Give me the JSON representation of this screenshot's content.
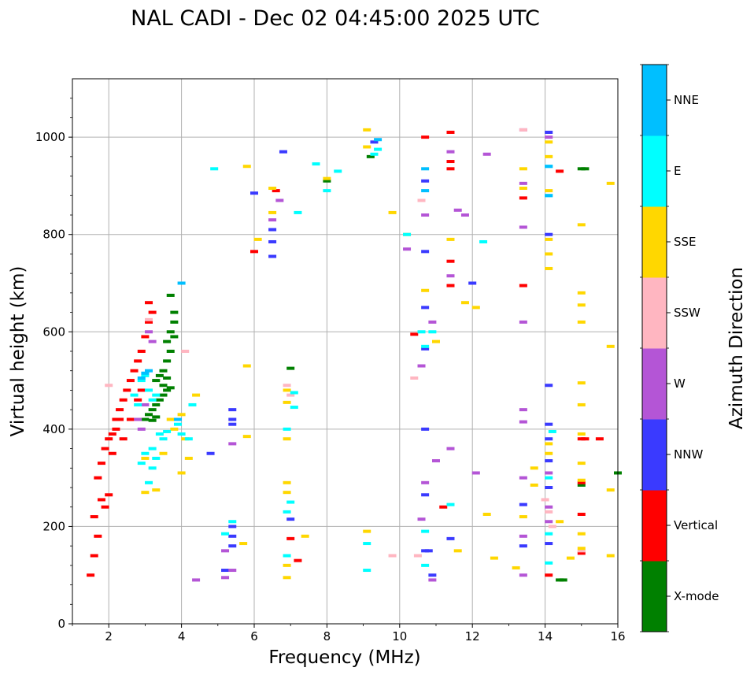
{
  "chart_data": {
    "type": "scatter",
    "title": "NAL CADI - Dec 02 04:45:00 2025 UTC",
    "xlabel": "Frequency (MHz)",
    "ylabel": "Virtual height (km)",
    "xlim": [
      1,
      16
    ],
    "ylim": [
      0,
      1120
    ],
    "xticks": [
      2,
      4,
      6,
      8,
      10,
      12,
      14,
      16
    ],
    "yticks": [
      0,
      200,
      400,
      600,
      800,
      1000
    ],
    "grid": true,
    "colorbar": {
      "label": "Azimuth Direction",
      "categories": [
        "X-mode",
        "Vertical",
        "NNW",
        "W",
        "SSW",
        "SSE",
        "E",
        "NNE"
      ],
      "colors": [
        "#008000",
        "#ff0000",
        "#3a3aff",
        "#b455d6",
        "#ffb6c1",
        "#ffd700",
        "#00ffff",
        "#00bfff"
      ]
    },
    "series": [
      {
        "name": "X-mode",
        "color": "#008000",
        "points": [
          [
            3.0,
            420
          ],
          [
            3.1,
            430
          ],
          [
            3.2,
            440
          ],
          [
            3.3,
            450
          ],
          [
            3.4,
            460
          ],
          [
            3.5,
            470
          ],
          [
            3.3,
            500
          ],
          [
            3.5,
            520
          ],
          [
            3.6,
            540
          ],
          [
            3.7,
            560
          ],
          [
            3.6,
            580
          ],
          [
            3.7,
            600
          ],
          [
            3.8,
            620
          ],
          [
            3.8,
            640
          ],
          [
            3.7,
            675
          ],
          [
            3.4,
            510
          ],
          [
            3.5,
            490
          ],
          [
            3.6,
            480
          ],
          [
            3.3,
            425
          ],
          [
            3.2,
            418
          ],
          [
            3.6,
            505
          ],
          [
            3.7,
            485
          ],
          [
            3.8,
            590
          ],
          [
            7.0,
            525
          ],
          [
            9.2,
            960
          ],
          [
            8.0,
            910
          ],
          [
            14.4,
            90
          ],
          [
            14.5,
            90
          ],
          [
            15.0,
            935
          ],
          [
            15.1,
            935
          ],
          [
            16.0,
            310
          ],
          [
            15.0,
            285
          ]
        ]
      },
      {
        "name": "Vertical",
        "color": "#ff0000",
        "points": [
          [
            1.5,
            100
          ],
          [
            1.6,
            140
          ],
          [
            1.7,
            180
          ],
          [
            1.6,
            220
          ],
          [
            1.8,
            255
          ],
          [
            2.0,
            265
          ],
          [
            1.9,
            240
          ],
          [
            1.7,
            300
          ],
          [
            1.8,
            330
          ],
          [
            1.9,
            360
          ],
          [
            2.0,
            380
          ],
          [
            2.1,
            390
          ],
          [
            2.2,
            400
          ],
          [
            2.2,
            420
          ],
          [
            2.3,
            440
          ],
          [
            2.4,
            460
          ],
          [
            2.5,
            480
          ],
          [
            2.6,
            500
          ],
          [
            2.7,
            520
          ],
          [
            2.8,
            540
          ],
          [
            2.9,
            560
          ],
          [
            3.0,
            590
          ],
          [
            3.1,
            620
          ],
          [
            3.2,
            640
          ],
          [
            3.1,
            660
          ],
          [
            2.3,
            420
          ],
          [
            2.4,
            380
          ],
          [
            2.6,
            420
          ],
          [
            2.8,
            460
          ],
          [
            2.9,
            480
          ],
          [
            2.1,
            350
          ],
          [
            6.0,
            765
          ],
          [
            6.6,
            890
          ],
          [
            7.0,
            175
          ],
          [
            7.2,
            130
          ],
          [
            10.4,
            595
          ],
          [
            10.7,
            1000
          ],
          [
            11.2,
            240
          ],
          [
            11.4,
            1010
          ],
          [
            11.4,
            950
          ],
          [
            11.4,
            935
          ],
          [
            11.4,
            745
          ],
          [
            11.4,
            695
          ],
          [
            13.4,
            875
          ],
          [
            13.4,
            695
          ],
          [
            14.1,
            100
          ],
          [
            14.4,
            930
          ],
          [
            15.0,
            380
          ],
          [
            15.1,
            380
          ],
          [
            15.5,
            380
          ],
          [
            15.0,
            290
          ],
          [
            15.0,
            225
          ],
          [
            15.0,
            145
          ]
        ]
      },
      {
        "name": "NNW",
        "color": "#3a3aff",
        "points": [
          [
            4.8,
            350
          ],
          [
            5.4,
            420
          ],
          [
            5.4,
            440
          ],
          [
            5.4,
            410
          ],
          [
            5.4,
            200
          ],
          [
            5.4,
            180
          ],
          [
            5.4,
            160
          ],
          [
            5.2,
            110
          ],
          [
            6.5,
            755
          ],
          [
            6.5,
            810
          ],
          [
            6.5,
            785
          ],
          [
            6.0,
            885
          ],
          [
            6.8,
            970
          ],
          [
            7.0,
            215
          ],
          [
            10.7,
            400
          ],
          [
            10.7,
            910
          ],
          [
            10.7,
            765
          ],
          [
            10.7,
            650
          ],
          [
            10.7,
            565
          ],
          [
            10.7,
            265
          ],
          [
            10.7,
            150
          ],
          [
            10.8,
            150
          ],
          [
            10.9,
            100
          ],
          [
            11.4,
            175
          ],
          [
            12.0,
            700
          ],
          [
            13.4,
            245
          ],
          [
            13.4,
            160
          ],
          [
            14.1,
            800
          ],
          [
            14.1,
            490
          ],
          [
            14.1,
            410
          ],
          [
            14.1,
            380
          ],
          [
            14.1,
            335
          ],
          [
            14.1,
            280
          ],
          [
            14.1,
            165
          ],
          [
            14.1,
            1010
          ],
          [
            9.3,
            990
          ]
        ]
      },
      {
        "name": "W",
        "color": "#b455d6",
        "points": [
          [
            2.9,
            400
          ],
          [
            2.8,
            420
          ],
          [
            3.0,
            450
          ],
          [
            3.1,
            600
          ],
          [
            3.2,
            580
          ],
          [
            5.4,
            370
          ],
          [
            5.2,
            150
          ],
          [
            5.4,
            110
          ],
          [
            4.4,
            90
          ],
          [
            5.2,
            95
          ],
          [
            6.5,
            830
          ],
          [
            6.7,
            870
          ],
          [
            10.6,
            530
          ],
          [
            10.7,
            290
          ],
          [
            10.6,
            215
          ],
          [
            10.9,
            90
          ],
          [
            10.9,
            620
          ],
          [
            10.7,
            840
          ],
          [
            11.0,
            335
          ],
          [
            11.4,
            360
          ],
          [
            11.4,
            715
          ],
          [
            11.4,
            970
          ],
          [
            11.6,
            850
          ],
          [
            11.8,
            840
          ],
          [
            12.4,
            965
          ],
          [
            12.1,
            310
          ],
          [
            13.4,
            440
          ],
          [
            13.4,
            415
          ],
          [
            13.4,
            300
          ],
          [
            13.4,
            180
          ],
          [
            13.4,
            100
          ],
          [
            13.4,
            620
          ],
          [
            13.4,
            815
          ],
          [
            13.4,
            905
          ],
          [
            13.4,
            1015
          ],
          [
            14.1,
            210
          ],
          [
            14.1,
            240
          ],
          [
            14.1,
            310
          ],
          [
            14.1,
            1000
          ],
          [
            10.2,
            770
          ]
        ]
      },
      {
        "name": "SSW",
        "color": "#ffb6c1",
        "points": [
          [
            2.0,
            490
          ],
          [
            3.1,
            625
          ],
          [
            4.1,
            560
          ],
          [
            6.9,
            490
          ],
          [
            7.0,
            470
          ],
          [
            10.4,
            505
          ],
          [
            10.6,
            870
          ],
          [
            13.4,
            1015
          ],
          [
            14.0,
            255
          ],
          [
            14.1,
            230
          ],
          [
            14.2,
            200
          ],
          [
            15.0,
            150
          ],
          [
            10.5,
            140
          ],
          [
            9.8,
            140
          ]
        ]
      },
      {
        "name": "SSE",
        "color": "#ffd700",
        "points": [
          [
            3.0,
            270
          ],
          [
            3.3,
            275
          ],
          [
            3.0,
            340
          ],
          [
            3.5,
            350
          ],
          [
            3.7,
            420
          ],
          [
            3.8,
            400
          ],
          [
            4.0,
            430
          ],
          [
            4.1,
            380
          ],
          [
            4.2,
            340
          ],
          [
            4.0,
            310
          ],
          [
            4.4,
            470
          ],
          [
            5.8,
            385
          ],
          [
            5.8,
            530
          ],
          [
            5.7,
            165
          ],
          [
            6.1,
            790
          ],
          [
            6.5,
            845
          ],
          [
            6.5,
            895
          ],
          [
            6.9,
            480
          ],
          [
            6.9,
            455
          ],
          [
            6.9,
            380
          ],
          [
            6.9,
            290
          ],
          [
            6.9,
            270
          ],
          [
            6.9,
            120
          ],
          [
            6.9,
            95
          ],
          [
            7.4,
            180
          ],
          [
            9.1,
            1015
          ],
          [
            9.1,
            980
          ],
          [
            9.1,
            190
          ],
          [
            9.8,
            845
          ],
          [
            10.2,
            800
          ],
          [
            10.7,
            685
          ],
          [
            11.0,
            580
          ],
          [
            11.4,
            790
          ],
          [
            11.6,
            150
          ],
          [
            11.8,
            660
          ],
          [
            12.1,
            650
          ],
          [
            12.4,
            225
          ],
          [
            12.6,
            135
          ],
          [
            13.2,
            115
          ],
          [
            13.4,
            935
          ],
          [
            13.4,
            895
          ],
          [
            13.4,
            220
          ],
          [
            13.7,
            320
          ],
          [
            13.7,
            285
          ],
          [
            14.1,
            990
          ],
          [
            14.1,
            960
          ],
          [
            14.1,
            890
          ],
          [
            14.1,
            790
          ],
          [
            14.1,
            760
          ],
          [
            14.1,
            730
          ],
          [
            14.1,
            370
          ],
          [
            14.1,
            350
          ],
          [
            14.4,
            210
          ],
          [
            14.7,
            135
          ],
          [
            15.0,
            820
          ],
          [
            15.0,
            680
          ],
          [
            15.0,
            655
          ],
          [
            15.0,
            620
          ],
          [
            15.0,
            495
          ],
          [
            15.0,
            450
          ],
          [
            15.0,
            390
          ],
          [
            15.0,
            330
          ],
          [
            15.0,
            295
          ],
          [
            15.0,
            185
          ],
          [
            15.0,
            155
          ],
          [
            15.8,
            905
          ],
          [
            15.8,
            570
          ],
          [
            15.8,
            275
          ],
          [
            15.8,
            140
          ],
          [
            5.8,
            940
          ],
          [
            8.0,
            915
          ]
        ]
      },
      {
        "name": "E",
        "color": "#00ffff",
        "points": [
          [
            2.7,
            470
          ],
          [
            2.8,
            450
          ],
          [
            2.9,
            500
          ],
          [
            3.0,
            510
          ],
          [
            3.1,
            480
          ],
          [
            3.2,
            460
          ],
          [
            3.3,
            470
          ],
          [
            3.4,
            390
          ],
          [
            3.5,
            380
          ],
          [
            3.2,
            360
          ],
          [
            3.0,
            350
          ],
          [
            3.2,
            320
          ],
          [
            3.1,
            290
          ],
          [
            2.9,
            330
          ],
          [
            3.3,
            340
          ],
          [
            3.6,
            395
          ],
          [
            3.9,
            410
          ],
          [
            4.0,
            390
          ],
          [
            4.2,
            380
          ],
          [
            4.3,
            450
          ],
          [
            4.9,
            935
          ],
          [
            5.2,
            185
          ],
          [
            5.4,
            210
          ],
          [
            6.9,
            400
          ],
          [
            6.9,
            230
          ],
          [
            6.9,
            140
          ],
          [
            7.0,
            250
          ],
          [
            7.1,
            475
          ],
          [
            7.1,
            445
          ],
          [
            7.2,
            845
          ],
          [
            7.7,
            945
          ],
          [
            8.3,
            930
          ],
          [
            9.1,
            165
          ],
          [
            9.1,
            110
          ],
          [
            9.3,
            965
          ],
          [
            9.4,
            975
          ],
          [
            10.2,
            800
          ],
          [
            10.6,
            600
          ],
          [
            10.7,
            570
          ],
          [
            10.7,
            190
          ],
          [
            10.7,
            120
          ],
          [
            10.9,
            600
          ],
          [
            11.4,
            245
          ],
          [
            12.3,
            785
          ],
          [
            14.1,
            940
          ],
          [
            14.1,
            880
          ],
          [
            14.1,
            300
          ],
          [
            14.1,
            185
          ],
          [
            14.1,
            125
          ],
          [
            8.0,
            890
          ],
          [
            14.2,
            395
          ]
        ]
      },
      {
        "name": "NNE",
        "color": "#00bfff",
        "points": [
          [
            2.9,
            505
          ],
          [
            3.0,
            515
          ],
          [
            3.1,
            520
          ],
          [
            3.9,
            420
          ],
          [
            4.0,
            700
          ],
          [
            9.4,
            995
          ],
          [
            10.7,
            935
          ],
          [
            10.7,
            890
          ],
          [
            14.1,
            940
          ],
          [
            14.1,
            880
          ]
        ]
      }
    ]
  }
}
